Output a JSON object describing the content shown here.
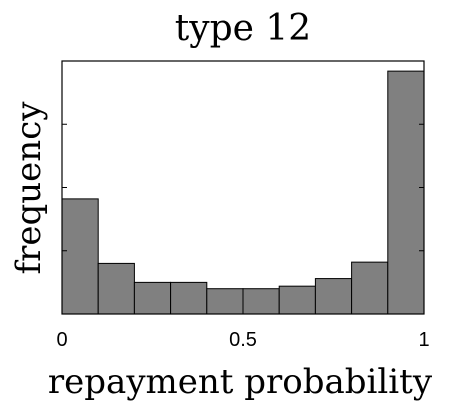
{
  "chart_data": {
    "type": "bar",
    "title": "type 12",
    "xlabel": "repayment probability",
    "ylabel": "frequency",
    "x_ticks": [
      "0",
      "0.5",
      "1"
    ],
    "x_tick_values": [
      0,
      0.5,
      1
    ],
    "xlim": [
      0,
      1
    ],
    "ylim": [
      0,
      1
    ],
    "bin_edges": [
      0,
      0.1,
      0.2,
      0.3,
      0.4,
      0.5,
      0.6,
      0.7,
      0.8,
      0.9,
      1.0
    ],
    "values": [
      0.455,
      0.2,
      0.125,
      0.125,
      0.1,
      0.1,
      0.11,
      0.14,
      0.205,
      0.96
    ],
    "bar_color": "#808080",
    "grid": false
  }
}
